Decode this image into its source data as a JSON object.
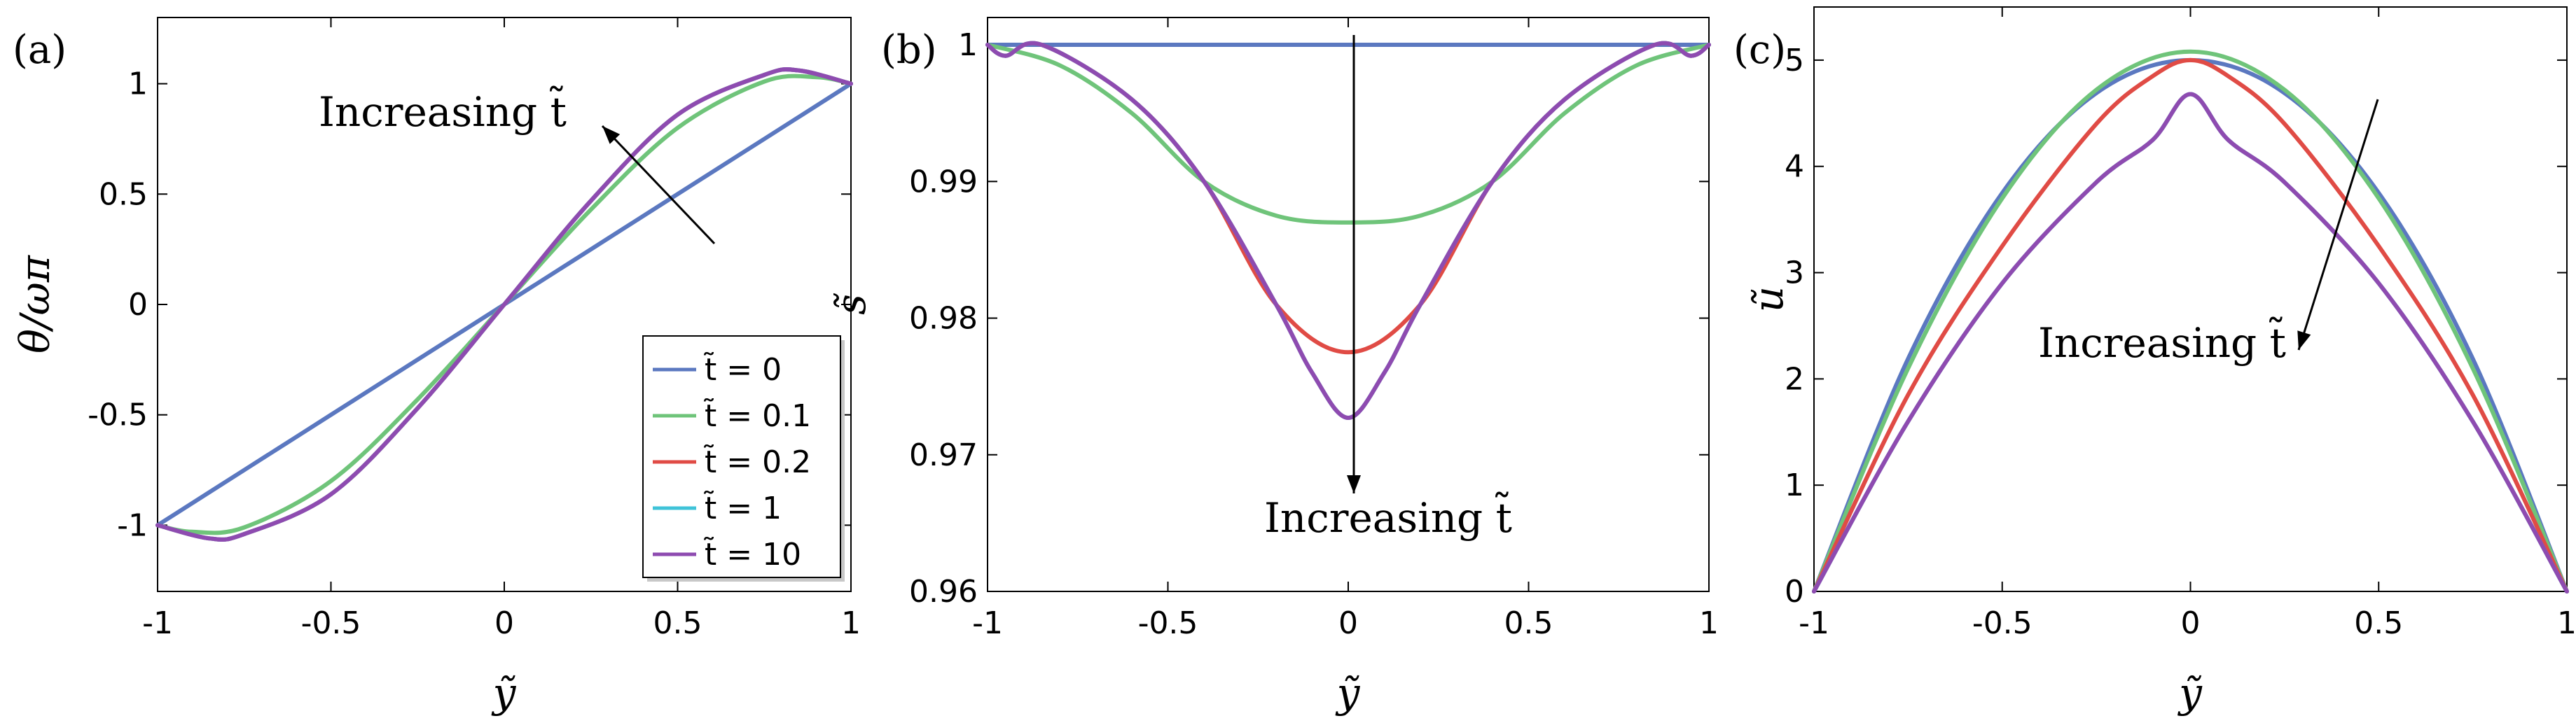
{
  "chart_data": [
    {
      "panel": "(a)",
      "type": "line",
      "xlabel": "ỹ",
      "ylabel": "θ/ωπ",
      "xlim": [
        -1.0,
        1.0
      ],
      "ylim": [
        -1.3,
        1.3
      ],
      "xticks": [
        "-1",
        "-0.5",
        "0",
        "0.5",
        "1"
      ],
      "yticks": [
        "-1",
        "-0.5",
        "0",
        "0.5",
        "1"
      ],
      "legend_position": "bottom-right",
      "annotation": "Increasing t̃",
      "series": [
        {
          "name": "t̃ = 0",
          "color": "#5b78c0",
          "x": [
            -1,
            -0.75,
            -0.5,
            -0.25,
            0,
            0.25,
            0.5,
            0.75,
            1
          ],
          "y": [
            -1,
            -0.75,
            -0.5,
            -0.25,
            0,
            0.25,
            0.5,
            0.75,
            1
          ]
        },
        {
          "name": "t̃ = 0.1",
          "color": "#6fc47a",
          "x": [
            -1,
            -0.9,
            -0.75,
            -0.5,
            -0.25,
            0,
            0.25,
            0.5,
            0.75,
            0.9,
            1
          ],
          "y": [
            -1,
            -1.03,
            -1.01,
            -0.8,
            -0.43,
            0,
            0.43,
            0.8,
            1.01,
            1.03,
            1
          ]
        },
        {
          "name": "t̃ = 0.2",
          "color": "#e04b45",
          "x": [
            -1,
            -0.85,
            -0.75,
            -0.5,
            -0.25,
            0,
            0.25,
            0.5,
            0.75,
            0.85,
            1
          ],
          "y": [
            -1,
            -1.06,
            -1.04,
            -0.86,
            -0.47,
            0,
            0.47,
            0.86,
            1.04,
            1.06,
            1
          ]
        },
        {
          "name": "t̃ = 1",
          "color": "#3fc3d8",
          "x": [
            -1,
            -0.85,
            -0.75,
            -0.5,
            -0.25,
            0,
            0.25,
            0.5,
            0.75,
            0.85,
            1
          ],
          "y": [
            -1,
            -1.06,
            -1.04,
            -0.86,
            -0.47,
            0,
            0.47,
            0.86,
            1.04,
            1.06,
            1
          ]
        },
        {
          "name": "t̃ = 10",
          "color": "#8e4bb0",
          "x": [
            -1,
            -0.85,
            -0.75,
            -0.5,
            -0.25,
            0,
            0.25,
            0.5,
            0.75,
            0.85,
            1
          ],
          "y": [
            -1,
            -1.06,
            -1.04,
            -0.86,
            -0.47,
            0,
            0.47,
            0.86,
            1.04,
            1.06,
            1
          ]
        }
      ]
    },
    {
      "panel": "(b)",
      "type": "line",
      "xlabel": "ỹ",
      "ylabel": "s̃",
      "xlim": [
        -1.0,
        1.0
      ],
      "ylim": [
        0.96,
        1.002
      ],
      "xticks": [
        "-1",
        "-0.5",
        "0",
        "0.5",
        "1"
      ],
      "yticks": [
        "0.96",
        "0.97",
        "0.98",
        "0.99",
        "1"
      ],
      "annotation": "Increasing t̃",
      "series": [
        {
          "name": "t̃ = 0",
          "color": "#5b78c0",
          "x": [
            -1,
            1
          ],
          "y": [
            1,
            1
          ]
        },
        {
          "name": "t̃ = 0.1",
          "color": "#6fc47a",
          "x": [
            -1,
            -0.8,
            -0.6,
            -0.4,
            -0.2,
            0,
            0.2,
            0.4,
            0.6,
            0.8,
            1
          ],
          "y": [
            1,
            0.9985,
            0.995,
            0.99,
            0.9875,
            0.987,
            0.9875,
            0.99,
            0.995,
            0.9985,
            1
          ]
        },
        {
          "name": "t̃ = 0.2",
          "color": "#e04b45",
          "x": [
            -1,
            -0.95,
            -0.85,
            -0.6,
            -0.4,
            -0.2,
            0,
            0.2,
            0.4,
            0.6,
            0.85,
            0.95,
            1
          ],
          "y": [
            1,
            0.9992,
            1,
            0.996,
            0.99,
            0.981,
            0.9775,
            0.981,
            0.99,
            0.996,
            1,
            0.9992,
            1
          ]
        },
        {
          "name": "t̃ = 1",
          "color": "#3fc3d8",
          "x": [
            -1,
            -0.95,
            -0.85,
            -0.6,
            -0.4,
            -0.2,
            -0.1,
            0,
            0.1,
            0.2,
            0.4,
            0.6,
            0.85,
            0.95,
            1
          ],
          "y": [
            1,
            0.9992,
            1,
            0.996,
            0.99,
            0.981,
            0.976,
            0.9727,
            0.976,
            0.981,
            0.99,
            0.996,
            1,
            0.9992,
            1
          ]
        },
        {
          "name": "t̃ = 10",
          "color": "#8e4bb0",
          "x": [
            -1,
            -0.95,
            -0.85,
            -0.6,
            -0.4,
            -0.2,
            -0.1,
            0,
            0.1,
            0.2,
            0.4,
            0.6,
            0.85,
            0.95,
            1
          ],
          "y": [
            1,
            0.9992,
            1,
            0.996,
            0.99,
            0.981,
            0.976,
            0.9727,
            0.976,
            0.981,
            0.99,
            0.996,
            1,
            0.9992,
            1
          ]
        }
      ]
    },
    {
      "panel": "(c)",
      "type": "line",
      "xlabel": "ỹ",
      "ylabel": "ũ",
      "xlim": [
        -1.0,
        1.0
      ],
      "ylim": [
        0,
        5.5
      ],
      "xticks": [
        "-1",
        "-0.5",
        "0",
        "0.5",
        "1"
      ],
      "yticks": [
        "0",
        "1",
        "2",
        "3",
        "4",
        "5"
      ],
      "annotation": "Increasing t̃",
      "series": [
        {
          "name": "t̃ = 0",
          "color": "#5b78c0",
          "x": [
            -1,
            -0.75,
            -0.5,
            -0.25,
            0,
            0.25,
            0.5,
            0.75,
            1
          ],
          "y": [
            0,
            2.19,
            3.75,
            4.69,
            5,
            4.69,
            3.75,
            2.19,
            0
          ]
        },
        {
          "name": "t̃ = 0.1",
          "color": "#6fc47a",
          "x": [
            -1,
            -0.75,
            -0.5,
            -0.25,
            0,
            0.25,
            0.5,
            0.75,
            1
          ],
          "y": [
            0,
            2.1,
            3.7,
            4.72,
            5.08,
            4.72,
            3.7,
            2.1,
            0
          ]
        },
        {
          "name": "t̃ = 0.2",
          "color": "#e04b45",
          "x": [
            -1,
            -0.75,
            -0.5,
            -0.25,
            -0.1,
            0,
            0.1,
            0.25,
            0.5,
            0.75,
            1
          ],
          "y": [
            0,
            1.85,
            3.25,
            4.4,
            4.85,
            5,
            4.85,
            4.4,
            3.25,
            1.85,
            0
          ]
        },
        {
          "name": "t̃ = 1",
          "color": "#3fc3d8",
          "x": [
            -1,
            -0.75,
            -0.5,
            -0.25,
            -0.1,
            0,
            0.1,
            0.25,
            0.5,
            0.75,
            1
          ],
          "y": [
            0,
            1.6,
            2.9,
            3.85,
            4.25,
            4.68,
            4.25,
            3.85,
            2.9,
            1.6,
            0
          ]
        },
        {
          "name": "t̃ = 10",
          "color": "#8e4bb0",
          "x": [
            -1,
            -0.75,
            -0.5,
            -0.25,
            -0.1,
            0,
            0.1,
            0.25,
            0.5,
            0.75,
            1
          ],
          "y": [
            0,
            1.6,
            2.9,
            3.85,
            4.25,
            4.68,
            4.25,
            3.85,
            2.9,
            1.6,
            0
          ]
        }
      ]
    }
  ]
}
